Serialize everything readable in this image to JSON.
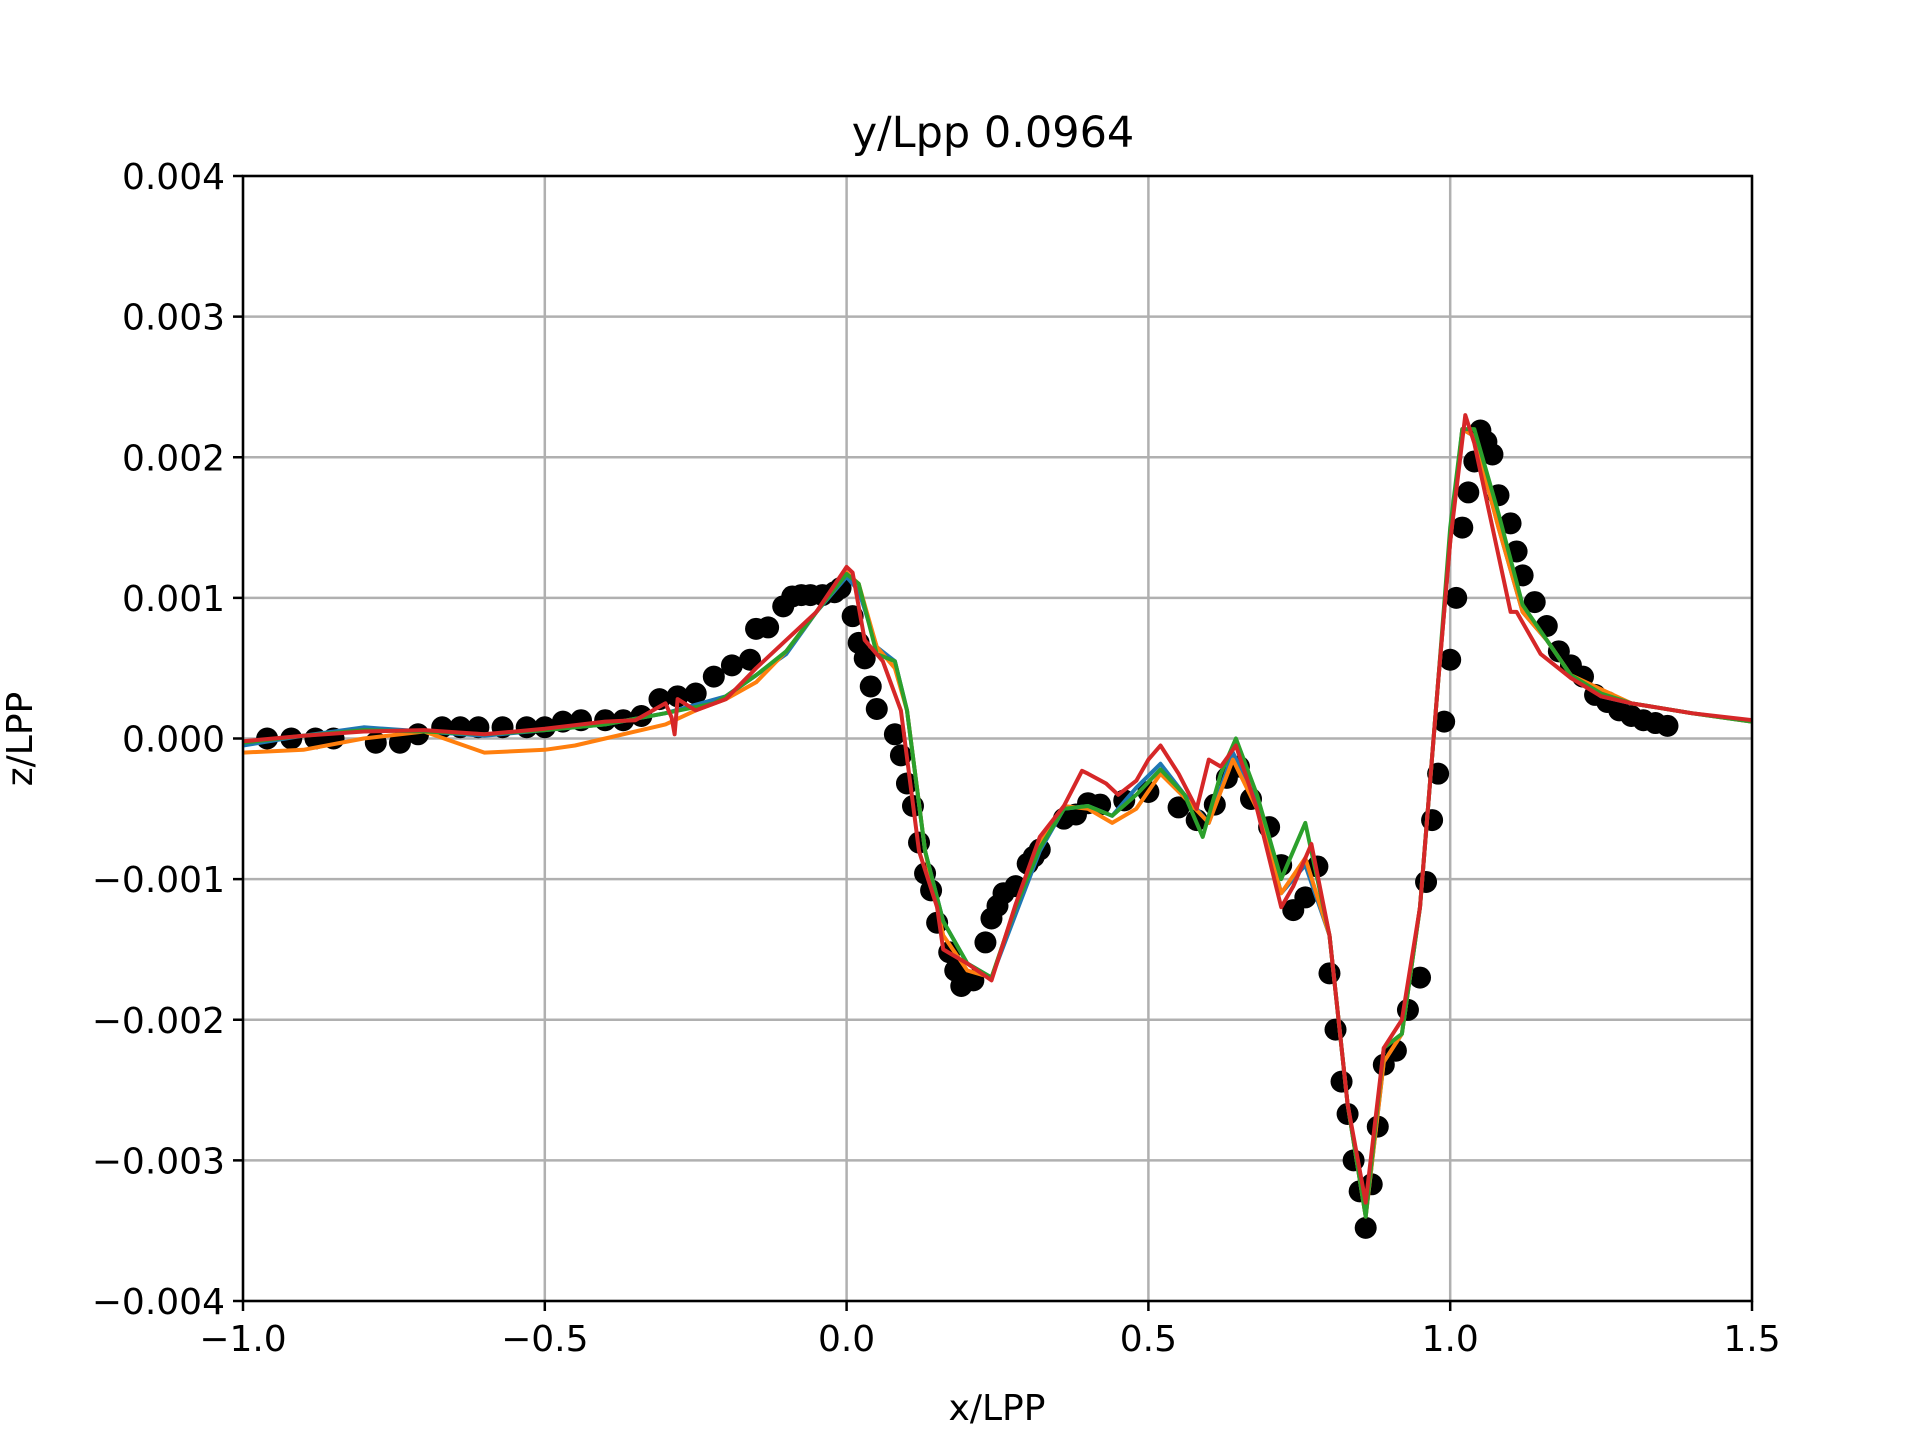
{
  "chart_data": {
    "type": "line",
    "title": "y/Lpp 0.0964",
    "xlabel": "x/LPP",
    "ylabel": "z/LPP",
    "xlim": [
      -1.0,
      1.5
    ],
    "ylim": [
      -0.004,
      0.004
    ],
    "x_ticks": [
      -1.0,
      -0.5,
      0.0,
      0.5,
      1.0,
      1.5
    ],
    "x_tick_labels": [
      "−1.0",
      "−0.5",
      "0.0",
      "0.5",
      "1.0",
      "1.5"
    ],
    "y_ticks": [
      -0.004,
      -0.003,
      -0.002,
      -0.001,
      0.0,
      0.001,
      0.002,
      0.003,
      0.004
    ],
    "y_tick_labels": [
      "−0.004",
      "−0.003",
      "−0.002",
      "−0.001",
      "0.000",
      "0.001",
      "0.002",
      "0.003",
      "0.004"
    ],
    "grid": true,
    "scatter": {
      "color": "#000000",
      "points": [
        [
          -0.96,
          0.0
        ],
        [
          -0.92,
          0.0
        ],
        [
          -0.88,
          0.0
        ],
        [
          -0.85,
          0.0
        ],
        [
          -0.78,
          -3e-05
        ],
        [
          -0.74,
          -3e-05
        ],
        [
          -0.71,
          3e-05
        ],
        [
          -0.67,
          8e-05
        ],
        [
          -0.64,
          8e-05
        ],
        [
          -0.61,
          8e-05
        ],
        [
          -0.57,
          8e-05
        ],
        [
          -0.53,
          8e-05
        ],
        [
          -0.5,
          8e-05
        ],
        [
          -0.47,
          0.00012
        ],
        [
          -0.44,
          0.00013
        ],
        [
          -0.4,
          0.00013
        ],
        [
          -0.37,
          0.00013
        ],
        [
          -0.34,
          0.00016
        ],
        [
          -0.31,
          0.00028
        ],
        [
          -0.28,
          0.0003
        ],
        [
          -0.25,
          0.00032
        ],
        [
          -0.22,
          0.00044
        ],
        [
          -0.19,
          0.00052
        ],
        [
          -0.16,
          0.00056
        ],
        [
          -0.15,
          0.00078
        ],
        [
          -0.13,
          0.00079
        ],
        [
          -0.105,
          0.00094
        ],
        [
          -0.09,
          0.00101
        ],
        [
          -0.075,
          0.00102
        ],
        [
          -0.06,
          0.00102
        ],
        [
          -0.04,
          0.00102
        ],
        [
          -0.02,
          0.00104
        ],
        [
          -0.01,
          0.00107
        ],
        [
          0.01,
          0.00087
        ],
        [
          0.02,
          0.00068
        ],
        [
          0.03,
          0.00057
        ],
        [
          0.04,
          0.00037
        ],
        [
          0.05,
          0.00021
        ],
        [
          0.08,
          3e-05
        ],
        [
          0.09,
          -0.00012
        ],
        [
          0.1,
          -0.00032
        ],
        [
          0.11,
          -0.00048
        ],
        [
          0.12,
          -0.00074
        ],
        [
          0.13,
          -0.00096
        ],
        [
          0.14,
          -0.00108
        ],
        [
          0.15,
          -0.00131
        ],
        [
          0.17,
          -0.00152
        ],
        [
          0.18,
          -0.00165
        ],
        [
          0.19,
          -0.00176
        ],
        [
          0.21,
          -0.00172
        ],
        [
          0.23,
          -0.00145
        ],
        [
          0.24,
          -0.00128
        ],
        [
          0.25,
          -0.00119
        ],
        [
          0.26,
          -0.0011
        ],
        [
          0.28,
          -0.00105
        ],
        [
          0.3,
          -0.00089
        ],
        [
          0.31,
          -0.00084
        ],
        [
          0.32,
          -0.00079
        ],
        [
          0.36,
          -0.00057
        ],
        [
          0.38,
          -0.00054
        ],
        [
          0.4,
          -0.00046
        ],
        [
          0.42,
          -0.00047
        ],
        [
          0.46,
          -0.00044
        ],
        [
          0.5,
          -0.00038
        ],
        [
          0.55,
          -0.00049
        ],
        [
          0.58,
          -0.00058
        ],
        [
          0.61,
          -0.00047
        ],
        [
          0.63,
          -0.00028
        ],
        [
          0.65,
          -0.0002
        ],
        [
          0.67,
          -0.00043
        ],
        [
          0.7,
          -0.00063
        ],
        [
          0.72,
          -0.0009
        ],
        [
          0.74,
          -0.00122
        ],
        [
          0.76,
          -0.00113
        ],
        [
          0.78,
          -0.00091
        ],
        [
          0.8,
          -0.00167
        ],
        [
          0.81,
          -0.00207
        ],
        [
          0.82,
          -0.00244
        ],
        [
          0.83,
          -0.00267
        ],
        [
          0.84,
          -0.003
        ],
        [
          0.85,
          -0.00322
        ],
        [
          0.86,
          -0.00348
        ],
        [
          0.87,
          -0.00317
        ],
        [
          0.88,
          -0.00276
        ],
        [
          0.89,
          -0.00232
        ],
        [
          0.91,
          -0.00222
        ],
        [
          0.93,
          -0.00193
        ],
        [
          0.95,
          -0.0017
        ],
        [
          0.96,
          -0.00102
        ],
        [
          0.97,
          -0.00058
        ],
        [
          0.98,
          -0.00025
        ],
        [
          0.99,
          0.00012
        ],
        [
          1.0,
          0.00056
        ],
        [
          1.01,
          0.001
        ],
        [
          1.02,
          0.0015
        ],
        [
          1.03,
          0.00175
        ],
        [
          1.04,
          0.00197
        ],
        [
          1.05,
          0.00219
        ],
        [
          1.06,
          0.00211
        ],
        [
          1.07,
          0.00202
        ],
        [
          1.08,
          0.00173
        ],
        [
          1.1,
          0.00153
        ],
        [
          1.11,
          0.00133
        ],
        [
          1.12,
          0.00116
        ],
        [
          1.14,
          0.00097
        ],
        [
          1.16,
          0.0008
        ],
        [
          1.18,
          0.00062
        ],
        [
          1.2,
          0.00052
        ],
        [
          1.22,
          0.00044
        ],
        [
          1.24,
          0.00031
        ],
        [
          1.26,
          0.00026
        ],
        [
          1.28,
          0.0002
        ],
        [
          1.3,
          0.00016
        ],
        [
          1.32,
          0.00013
        ],
        [
          1.34,
          0.00011
        ],
        [
          1.36,
          9e-05
        ]
      ]
    },
    "series": [
      {
        "color": "#1f77b4",
        "x": [
          -1.0,
          -0.9,
          -0.8,
          -0.7,
          -0.6,
          -0.5,
          -0.4,
          -0.3,
          -0.2,
          -0.15,
          -0.1,
          -0.05,
          0.0,
          0.02,
          0.05,
          0.08,
          0.1,
          0.13,
          0.16,
          0.2,
          0.24,
          0.28,
          0.32,
          0.36,
          0.4,
          0.44,
          0.48,
          0.52,
          0.56,
          0.6,
          0.64,
          0.68,
          0.72,
          0.76,
          0.8,
          0.83,
          0.86,
          0.89,
          0.92,
          0.95,
          0.98,
          1.0,
          1.02,
          1.04,
          1.08,
          1.12,
          1.16,
          1.2,
          1.25,
          1.3,
          1.4,
          1.5
        ],
        "y": [
          -5e-05,
          2e-05,
          8e-05,
          5e-05,
          2e-05,
          6e-05,
          0.0001,
          0.00018,
          0.0003,
          0.00045,
          0.0006,
          0.0009,
          0.00115,
          0.00105,
          0.00065,
          0.00055,
          0.0002,
          -0.0008,
          -0.0013,
          -0.0016,
          -0.0017,
          -0.00125,
          -0.0008,
          -0.0005,
          -0.00048,
          -0.00055,
          -0.00035,
          -0.00018,
          -0.0004,
          -0.0006,
          -0.0001,
          -0.00045,
          -0.0011,
          -0.0009,
          -0.0014,
          -0.0026,
          -0.0034,
          -0.0023,
          -0.0021,
          -0.0012,
          0.0004,
          0.0014,
          0.0022,
          0.00215,
          0.0015,
          0.0009,
          0.0007,
          0.00045,
          0.0003,
          0.00025,
          0.00018,
          0.00012
        ]
      },
      {
        "color": "#ff7f0e",
        "x": [
          -1.0,
          -0.9,
          -0.8,
          -0.7,
          -0.6,
          -0.5,
          -0.45,
          -0.4,
          -0.3,
          -0.25,
          -0.2,
          -0.15,
          -0.1,
          -0.05,
          0.0,
          0.02,
          0.05,
          0.08,
          0.1,
          0.13,
          0.16,
          0.2,
          0.24,
          0.28,
          0.32,
          0.36,
          0.4,
          0.44,
          0.48,
          0.52,
          0.56,
          0.6,
          0.64,
          0.68,
          0.72,
          0.76,
          0.8,
          0.83,
          0.86,
          0.89,
          0.92,
          0.95,
          0.98,
          1.0,
          1.02,
          1.04,
          1.08,
          1.12,
          1.16,
          1.2,
          1.25,
          1.3,
          1.4,
          1.5
        ],
        "y": [
          -0.0001,
          -8e-05,
          0.0,
          5e-05,
          -0.0001,
          -8e-05,
          -5e-05,
          0.0,
          0.0001,
          0.0002,
          0.00028,
          0.0004,
          0.00062,
          0.0009,
          0.00118,
          0.0011,
          0.00065,
          0.0005,
          0.0002,
          -0.0008,
          -0.0014,
          -0.00165,
          -0.0017,
          -0.0012,
          -0.00075,
          -0.00048,
          -0.0005,
          -0.0006,
          -0.0005,
          -0.00025,
          -0.00042,
          -0.0006,
          -0.00015,
          -0.0005,
          -0.0011,
          -0.00085,
          -0.0014,
          -0.0026,
          -0.0034,
          -0.0023,
          -0.0021,
          -0.0012,
          0.0004,
          0.0014,
          0.0022,
          0.00215,
          0.0015,
          0.0009,
          0.0007,
          0.00045,
          0.00035,
          0.00025,
          0.00018,
          0.00012
        ]
      },
      {
        "color": "#2ca02c",
        "x": [
          -1.0,
          -0.9,
          -0.8,
          -0.7,
          -0.6,
          -0.5,
          -0.4,
          -0.3,
          -0.22,
          -0.2,
          -0.15,
          -0.1,
          -0.05,
          0.0,
          0.02,
          0.05,
          0.08,
          0.1,
          0.13,
          0.16,
          0.2,
          0.24,
          0.28,
          0.32,
          0.36,
          0.4,
          0.44,
          0.48,
          0.52,
          0.56,
          0.59,
          0.62,
          0.645,
          0.68,
          0.72,
          0.76,
          0.8,
          0.83,
          0.86,
          0.89,
          0.92,
          0.95,
          0.98,
          1.0,
          1.02,
          1.04,
          1.08,
          1.12,
          1.16,
          1.2,
          1.25,
          1.3,
          1.4,
          1.5
        ],
        "y": [
          -3e-05,
          2e-05,
          6e-05,
          5e-05,
          3e-05,
          6e-05,
          0.0001,
          0.00018,
          0.00025,
          0.0003,
          0.00045,
          0.00062,
          0.0009,
          0.00117,
          0.0011,
          0.0006,
          0.00055,
          0.0002,
          -0.0008,
          -0.0013,
          -0.0016,
          -0.0017,
          -0.0012,
          -0.00078,
          -0.0005,
          -0.00048,
          -0.00055,
          -0.0004,
          -0.00022,
          -0.0004,
          -0.0007,
          -0.00025,
          -0.0,
          -0.0004,
          -0.001,
          -0.0006,
          -0.0014,
          -0.0026,
          -0.0034,
          -0.0022,
          -0.0021,
          -0.0012,
          0.0004,
          0.0015,
          0.0022,
          0.0022,
          0.0016,
          0.00095,
          0.0007,
          0.00045,
          0.00032,
          0.00025,
          0.00018,
          0.00012
        ]
      },
      {
        "color": "#d62728",
        "x": [
          -1.0,
          -0.9,
          -0.8,
          -0.7,
          -0.6,
          -0.5,
          -0.4,
          -0.35,
          -0.3,
          -0.29,
          -0.285,
          -0.28,
          -0.25,
          -0.2,
          -0.15,
          -0.1,
          -0.05,
          0.0,
          0.01,
          0.03,
          0.06,
          0.09,
          0.12,
          0.15,
          0.16,
          0.2,
          0.24,
          0.28,
          0.32,
          0.36,
          0.39,
          0.4,
          0.43,
          0.45,
          0.48,
          0.5,
          0.52,
          0.55,
          0.58,
          0.6,
          0.62,
          0.645,
          0.68,
          0.72,
          0.74,
          0.77,
          0.8,
          0.83,
          0.86,
          0.89,
          0.92,
          0.95,
          0.98,
          1.0,
          1.025,
          1.04,
          1.07,
          1.1,
          1.11,
          1.15,
          1.2,
          1.25,
          1.3,
          1.4,
          1.5
        ],
        "y": [
          -2e-05,
          2e-05,
          5e-05,
          6e-05,
          3e-05,
          7e-05,
          0.00012,
          0.00013,
          0.00025,
          0.00015,
          3e-05,
          0.00028,
          0.0002,
          0.00028,
          0.0005,
          0.0007,
          0.0009,
          0.00122,
          0.00118,
          0.0007,
          0.00055,
          0.0002,
          -0.0008,
          -0.0012,
          -0.0015,
          -0.0016,
          -0.00172,
          -0.00118,
          -0.0007,
          -0.00048,
          -0.00023,
          -0.00025,
          -0.00032,
          -0.0004,
          -0.0003,
          -0.00015,
          -5e-05,
          -0.00025,
          -0.0005,
          -0.00015,
          -0.0002,
          -5e-05,
          -0.0005,
          -0.0012,
          -0.00105,
          -0.00075,
          -0.0014,
          -0.0026,
          -0.0033,
          -0.0022,
          -0.002,
          -0.0012,
          0.0004,
          0.0014,
          0.0023,
          0.0021,
          0.0015,
          0.0009,
          0.0009,
          0.0006,
          0.00043,
          0.0003,
          0.00025,
          0.00018,
          0.00013
        ]
      }
    ]
  }
}
